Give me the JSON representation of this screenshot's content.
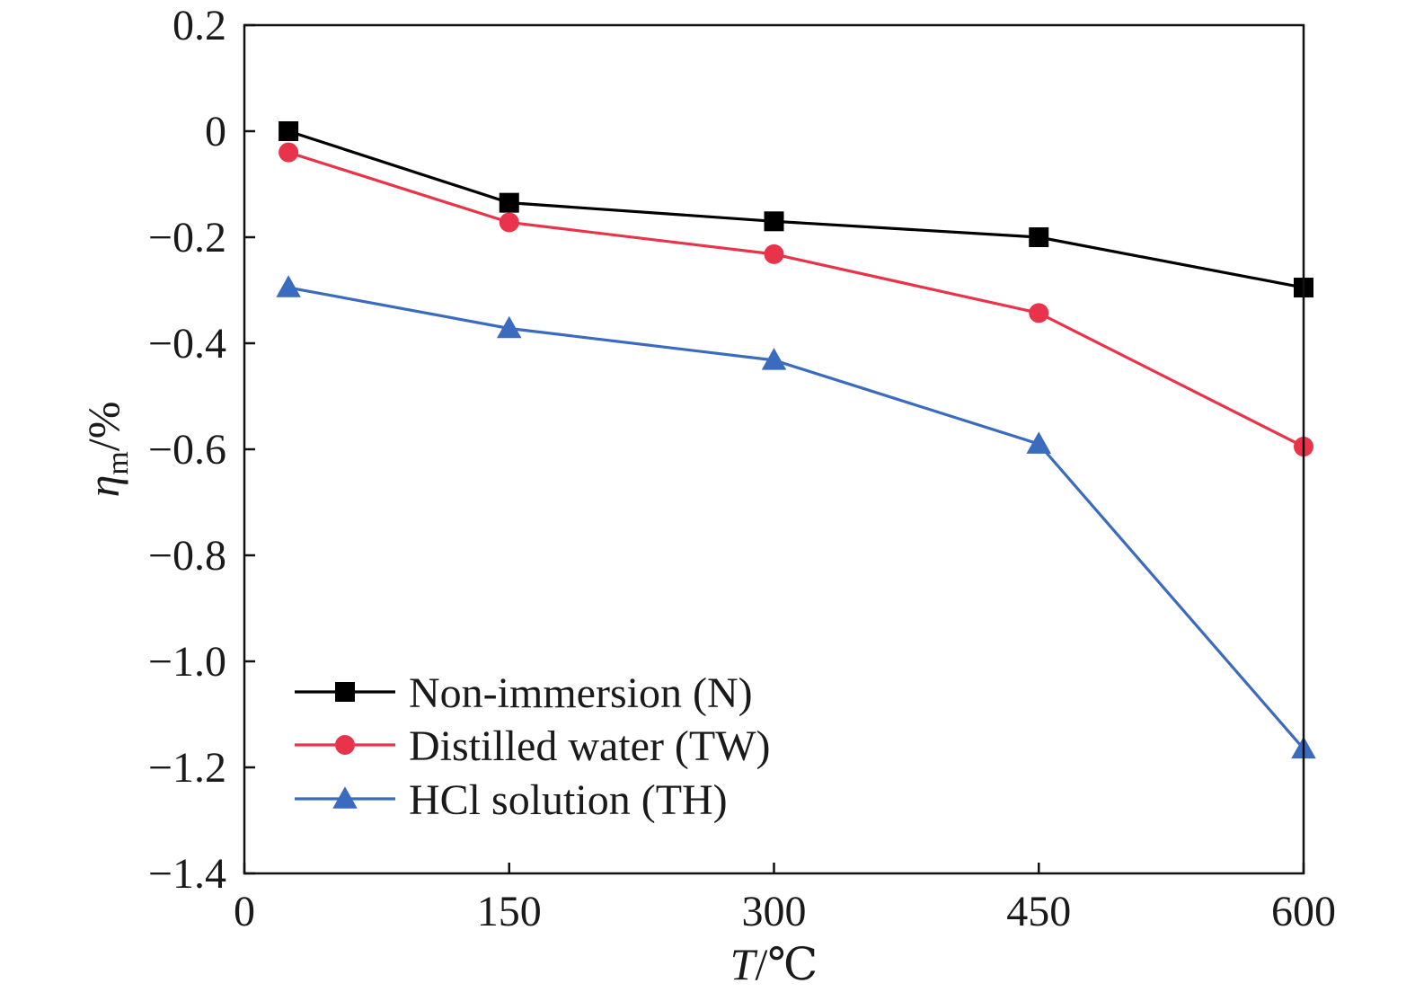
{
  "chart_data": {
    "type": "line",
    "x": [
      25,
      150,
      300,
      450,
      600
    ],
    "xlim": [
      0,
      600
    ],
    "ylim": [
      -1.4,
      0.2
    ],
    "xticks": [
      0,
      150,
      300,
      450,
      600
    ],
    "yticks": [
      0.2,
      0,
      -0.2,
      -0.4,
      -0.6,
      -0.8,
      -1.0,
      -1.2,
      -1.4
    ],
    "xtick_labels": [
      "0",
      "150",
      "300",
      "450",
      "600"
    ],
    "ytick_labels": [
      "0.2",
      "0",
      "−0.2",
      "−0.4",
      "−0.6",
      "−0.8",
      "−1.0",
      "−1.2",
      "−1.4"
    ],
    "xlabel": {
      "main": "T",
      "rest": "/℃"
    },
    "ylabel": {
      "main": "η",
      "sub": "m",
      "rest": "/%"
    },
    "legend_position": "bottom-left",
    "grid": false,
    "series": [
      {
        "name": "Non-immersion (N)",
        "marker": "square",
        "color": "#000000",
        "values": [
          0.0,
          -0.135,
          -0.17,
          -0.2,
          -0.295
        ]
      },
      {
        "name": "Distilled water (TW)",
        "marker": "circle",
        "color": "#e8334a",
        "values": [
          -0.04,
          -0.172,
          -0.232,
          -0.343,
          -0.595
        ]
      },
      {
        "name": "HCl solution (TH)",
        "marker": "triangle",
        "color": "#3a6bbf",
        "values": [
          -0.295,
          -0.372,
          -0.432,
          -0.59,
          -1.165
        ]
      }
    ]
  }
}
